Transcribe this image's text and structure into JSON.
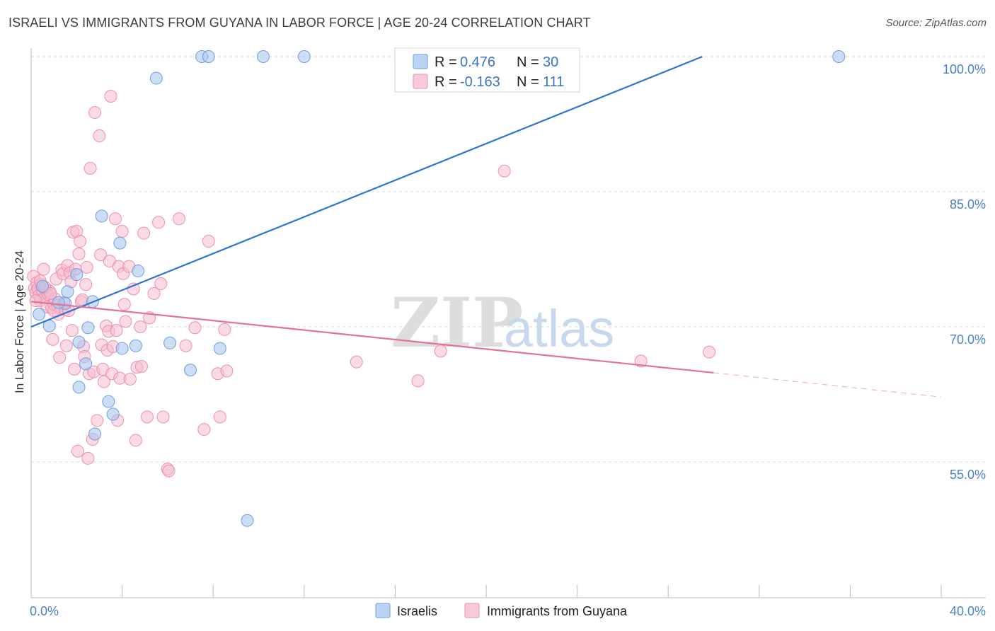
{
  "title": "ISRAELI VS IMMIGRANTS FROM GUYANA IN LABOR FORCE | AGE 20-24 CORRELATION CHART",
  "source": "Source: ZipAtlas.com",
  "watermark": {
    "zip": "ZIP",
    "atlas": "atlas"
  },
  "colors": {
    "blue_fill": "#a9c8ef",
    "blue_stroke": "#6f9fdc",
    "blue_line": "#2f73d0",
    "pink_fill": "#f6bccf",
    "pink_stroke": "#ec8fae",
    "pink_line": "#e4719a",
    "axis_label": "#4a7fc9",
    "grid": "#d9d9d9"
  },
  "legend": {
    "rows": [
      {
        "r_label": "R =",
        "r_value": "0.476",
        "n_label": "N =",
        "n_value": "30"
      },
      {
        "r_label": "R =",
        "r_value": "-0.163",
        "n_label": "N =",
        "n_value": "111"
      }
    ]
  },
  "bottom_legend": {
    "series1": "Israelis",
    "series2": "Immigrants from Guyana"
  },
  "chart_data": {
    "type": "scatter",
    "title": "ISRAELI VS IMMIGRANTS FROM GUYANA IN LABOR FORCE | AGE 20-24 CORRELATION CHART",
    "xlabel": "",
    "ylabel": "In Labor Force | Age 20-24",
    "xlim": [
      0,
      40
    ],
    "ylim": [
      40,
      101
    ],
    "x_tick_labels": [
      "0.0%",
      "40.0%"
    ],
    "y_ticks": [
      55,
      70,
      85,
      100
    ],
    "y_tick_labels": [
      "55.0%",
      "70.0%",
      "85.0%",
      "100.0%"
    ],
    "grid": true,
    "series": [
      {
        "name": "Israelis",
        "R": 0.476,
        "N": 30,
        "trend": {
          "x0": 0,
          "y0": 70.0,
          "x1": 29.5,
          "y1": 100.0
        },
        "points": [
          [
            0.35,
            71.4
          ],
          [
            0.8,
            70.1
          ],
          [
            1.5,
            72.6
          ],
          [
            1.6,
            73.9
          ],
          [
            2.0,
            75.8
          ],
          [
            2.1,
            68.3
          ],
          [
            2.4,
            65.9
          ],
          [
            2.1,
            63.3
          ],
          [
            2.5,
            69.9
          ],
          [
            2.7,
            72.8
          ],
          [
            2.8,
            58.1
          ],
          [
            3.1,
            82.3
          ],
          [
            3.4,
            61.7
          ],
          [
            3.6,
            60.3
          ],
          [
            3.9,
            79.3
          ],
          [
            4.0,
            67.6
          ],
          [
            4.6,
            67.9
          ],
          [
            4.7,
            76.2
          ],
          [
            5.5,
            97.6
          ],
          [
            6.1,
            68.2
          ],
          [
            7.0,
            65.2
          ],
          [
            7.5,
            100.0
          ],
          [
            7.8,
            100.0
          ],
          [
            8.3,
            67.6
          ],
          [
            9.5,
            48.5
          ],
          [
            10.2,
            100.0
          ],
          [
            12.0,
            100.0
          ],
          [
            35.5,
            100.0
          ],
          [
            0.5,
            74.5
          ],
          [
            1.2,
            72.7
          ]
        ]
      },
      {
        "name": "Immigrants from Guyana",
        "R": -0.163,
        "N": 111,
        "trend": {
          "x0": 0,
          "y0": 72.8,
          "x1": 30.0,
          "y1": 64.9
        },
        "trend_dashed": {
          "x0": 30.0,
          "y0": 64.9,
          "x1": 40.0,
          "y1": 62.2
        },
        "points": [
          [
            0.1,
            75.6
          ],
          [
            0.15,
            74.3
          ],
          [
            0.2,
            73.8
          ],
          [
            0.25,
            74.9
          ],
          [
            0.3,
            74.2
          ],
          [
            0.35,
            73.5
          ],
          [
            0.4,
            72.9
          ],
          [
            0.45,
            74.7
          ],
          [
            0.5,
            74.0
          ],
          [
            0.55,
            76.4
          ],
          [
            0.6,
            73.3
          ],
          [
            0.65,
            74.1
          ],
          [
            0.7,
            72.2
          ],
          [
            0.75,
            73.6
          ],
          [
            0.8,
            74.0
          ],
          [
            0.9,
            72.1
          ],
          [
            0.95,
            68.6
          ],
          [
            1.0,
            72.5
          ],
          [
            1.05,
            73.1
          ],
          [
            1.1,
            75.3
          ],
          [
            1.15,
            72.4
          ],
          [
            1.2,
            71.4
          ],
          [
            1.25,
            66.6
          ],
          [
            1.3,
            72.0
          ],
          [
            1.35,
            76.3
          ],
          [
            1.4,
            75.9
          ],
          [
            1.5,
            71.9
          ],
          [
            1.55,
            67.9
          ],
          [
            1.6,
            76.8
          ],
          [
            1.7,
            76.0
          ],
          [
            1.75,
            75.0
          ],
          [
            1.8,
            69.6
          ],
          [
            1.85,
            80.5
          ],
          [
            1.9,
            65.3
          ],
          [
            1.95,
            76.4
          ],
          [
            2.0,
            80.6
          ],
          [
            2.05,
            56.2
          ],
          [
            2.1,
            78.1
          ],
          [
            2.15,
            79.5
          ],
          [
            2.2,
            72.8
          ],
          [
            2.3,
            67.8
          ],
          [
            2.35,
            66.7
          ],
          [
            2.4,
            74.7
          ],
          [
            2.45,
            76.6
          ],
          [
            2.5,
            55.4
          ],
          [
            2.55,
            64.8
          ],
          [
            2.6,
            87.6
          ],
          [
            2.7,
            57.5
          ],
          [
            2.75,
            65.0
          ],
          [
            2.8,
            93.8
          ],
          [
            2.9,
            59.6
          ],
          [
            3.0,
            91.2
          ],
          [
            3.05,
            78.0
          ],
          [
            3.1,
            68.0
          ],
          [
            3.15,
            65.3
          ],
          [
            3.2,
            63.9
          ],
          [
            3.3,
            70.1
          ],
          [
            3.35,
            67.4
          ],
          [
            3.4,
            69.5
          ],
          [
            3.45,
            77.3
          ],
          [
            3.5,
            95.6
          ],
          [
            3.55,
            64.8
          ],
          [
            3.6,
            67.8
          ],
          [
            3.7,
            82.0
          ],
          [
            3.75,
            69.6
          ],
          [
            3.8,
            59.6
          ],
          [
            3.85,
            76.7
          ],
          [
            3.9,
            64.3
          ],
          [
            4.0,
            80.6
          ],
          [
            4.05,
            75.9
          ],
          [
            4.1,
            72.5
          ],
          [
            4.15,
            70.6
          ],
          [
            4.3,
            76.7
          ],
          [
            4.35,
            64.2
          ],
          [
            4.5,
            74.2
          ],
          [
            4.6,
            57.4
          ],
          [
            4.65,
            65.5
          ],
          [
            4.8,
            70.0
          ],
          [
            4.85,
            65.6
          ],
          [
            4.95,
            80.4
          ],
          [
            5.1,
            60.0
          ],
          [
            5.2,
            71.0
          ],
          [
            5.4,
            73.7
          ],
          [
            5.6,
            81.6
          ],
          [
            5.7,
            74.8
          ],
          [
            5.8,
            60.0
          ],
          [
            6.0,
            54.2
          ],
          [
            6.05,
            54.0
          ],
          [
            6.5,
            82.0
          ],
          [
            6.8,
            67.9
          ],
          [
            7.2,
            69.9
          ],
          [
            7.6,
            58.6
          ],
          [
            7.8,
            79.5
          ],
          [
            8.2,
            64.8
          ],
          [
            8.3,
            60.0
          ],
          [
            8.5,
            69.7
          ],
          [
            8.6,
            65.1
          ],
          [
            14.3,
            66.1
          ],
          [
            17.0,
            64.0
          ],
          [
            18.0,
            67.3
          ],
          [
            20.8,
            87.3
          ],
          [
            26.8,
            66.2
          ],
          [
            29.8,
            67.2
          ],
          [
            0.2,
            72.9
          ],
          [
            0.4,
            75.1
          ],
          [
            0.6,
            74.4
          ],
          [
            0.85,
            73.7
          ],
          [
            1.0,
            71.8
          ],
          [
            1.45,
            72.7
          ],
          [
            1.65,
            71.8
          ],
          [
            2.25,
            73.0
          ]
        ]
      }
    ]
  }
}
